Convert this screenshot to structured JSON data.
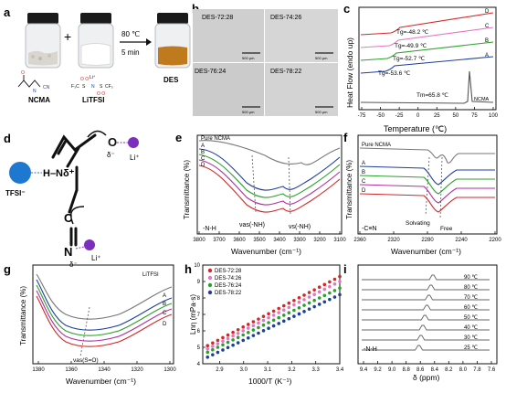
{
  "panels": {
    "a": {
      "letter": "a",
      "heat": "80 ℃",
      "time": "5 min",
      "plus": "+",
      "vials": [
        "NCMA",
        "LiTFSI",
        "DES"
      ],
      "mol1": "NCMA structure",
      "mol2": "LiTFSI structure",
      "colors": {
        "des_liquid": "#c07a1e",
        "cap": "#1a1a1a"
      }
    },
    "b": {
      "letter": "b",
      "images": [
        "DES-72:28",
        "DES-74:26",
        "DES-76:24",
        "DES-78:22"
      ],
      "scale": "500 μm"
    },
    "c": {
      "letter": "c",
      "ylabel": "Heat Flow (endo up)",
      "xlabel": "Temperature (℃)",
      "series": [
        "D",
        "C",
        "B",
        "A",
        "NCMA"
      ],
      "tg": [
        "Tg=-48.2 ℃",
        "Tg=-49.9 ℃",
        "Tg=-52.7 ℃",
        "Tg=-53.6 ℃"
      ],
      "tm": "Tm=65.8 ℃",
      "ticks": [
        "-75",
        "-50",
        "-25",
        "0",
        "25",
        "50",
        "75",
        "100"
      ]
    },
    "d": {
      "letter": "d",
      "tfsi": "TFSI⁻",
      "li1": "Li⁺",
      "li2": "Li⁺",
      "nh": "H–Nδ⁺",
      "o": "O",
      "delta1": "δ⁻",
      "delta2": "δ⁻",
      "c": "C",
      "n": "N"
    },
    "e": {
      "letter": "e",
      "ylabel": "Transmittance (%)",
      "xlabel": "Wavenumber (cm⁻¹)",
      "ticks": [
        "3800",
        "3700",
        "3600",
        "3500",
        "3400",
        "3300",
        "3200",
        "3100"
      ],
      "labels": [
        "Pure NCMA",
        "A",
        "B",
        "C",
        "D"
      ],
      "annotations": [
        "-N-H",
        "νas(-NH)",
        "νs(-NH)"
      ]
    },
    "f": {
      "letter": "f",
      "ylabel": "Transmittance (%)",
      "xlabel": "Wavenumber (cm⁻¹)",
      "ticks": [
        "2360",
        "2320",
        "2280",
        "2240",
        "2200"
      ],
      "labels": [
        "Pure NCMA",
        "A",
        "B",
        "C",
        "D"
      ],
      "annotations": [
        "-C≡N",
        "Solvating",
        "Free"
      ]
    },
    "g": {
      "letter": "g",
      "ylabel": "Transmittance (%)",
      "xlabel": "Wavenumber (cm⁻¹)",
      "ticks": [
        "1380",
        "1360",
        "1340",
        "1320",
        "1300"
      ],
      "labels": [
        "LiTFSI",
        "A",
        "B",
        "C",
        "D"
      ],
      "annotations": [
        "νas(S=O)"
      ]
    },
    "h": {
      "letter": "h",
      "ylabel": "Lnη (mPa·s)",
      "xlabel": "1000/T (K⁻¹)"
    },
    "i": {
      "letter": "i",
      "xlabel": "δ (ppm)",
      "ticks": [
        "9.4",
        "9.2",
        "9.0",
        "8.8",
        "8.6",
        "8.4",
        "8.2",
        "8.0",
        "7.8",
        "7.6"
      ],
      "temps": [
        "90 ℃",
        "80 ℃",
        "70 ℃",
        "60 ℃",
        "50 ℃",
        "40 ℃",
        "30 ℃",
        "25 ℃"
      ],
      "nh": "-N-H"
    }
  },
  "chart_data": [
    {
      "type": "scatter",
      "panel": "h",
      "xlabel": "1000/T (K⁻¹)",
      "ylabel": "Lnη (mPa·s)",
      "xlim": [
        2.83,
        3.4
      ],
      "ylim": [
        4,
        10
      ],
      "xticks": [
        2.9,
        3.0,
        3.1,
        3.2,
        3.3,
        3.4
      ],
      "yticks": [
        4,
        5,
        6,
        7,
        8,
        9,
        10
      ],
      "legend_position": "top-left",
      "series": [
        {
          "name": "DES-72:28",
          "color": "#d62728",
          "x": [
            2.85,
            3.4
          ],
          "y": [
            5.1,
            9.3
          ]
        },
        {
          "name": "DES-74:26",
          "color": "#e377c2",
          "x": [
            2.85,
            3.4
          ],
          "y": [
            4.9,
            9.0
          ]
        },
        {
          "name": "DES-76:24",
          "color": "#2ca02c",
          "x": [
            2.85,
            3.4
          ],
          "y": [
            4.7,
            8.6
          ]
        },
        {
          "name": "DES-78:22",
          "color": "#1f3f9f",
          "x": [
            2.85,
            3.4
          ],
          "y": [
            4.4,
            8.2
          ]
        }
      ]
    },
    {
      "type": "line",
      "panel": "c",
      "xlabel": "Temperature (℃)",
      "ylabel": "Heat Flow (endo up)",
      "xlim": [
        -75,
        100
      ],
      "series": [
        {
          "name": "D",
          "color": "#d62728"
        },
        {
          "name": "C",
          "color": "#e377c2"
        },
        {
          "name": "B",
          "color": "#2ca02c"
        },
        {
          "name": "A",
          "color": "#1f3f9f"
        },
        {
          "name": "NCMA",
          "color": "#555555"
        }
      ]
    }
  ]
}
